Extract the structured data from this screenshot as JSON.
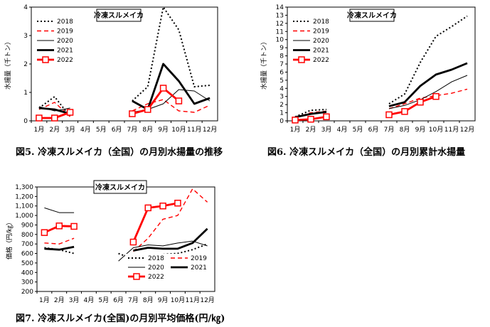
{
  "captions": {
    "fig5": "図5. 冷凍スルメイカ（全国）の月別水揚量の推移",
    "fig6": "図6. 冷凍スルメイカ（全国）の月別累計水揚量",
    "fig7": "図7. 冷凍スルメイカ(全国)の月別平均価格(円/㎏)"
  },
  "colors": {
    "y2018": "#000000",
    "y2019": "#ff0000",
    "y2020": "#000000",
    "y2021": "#000000",
    "y2022": "#ff0000"
  },
  "chart_data": [
    {
      "id": "fig5",
      "type": "line",
      "title": "冷凍スルメイカ",
      "ylabel": "水揚量（千トン）",
      "ylim": [
        0,
        4
      ],
      "yticks": [
        "0",
        "1",
        "2",
        "3",
        "4"
      ],
      "categories": [
        "1月",
        "2月",
        "3月",
        "4月",
        "5月",
        "6月",
        "7月",
        "8月",
        "9月",
        "10月",
        "11月",
        "12月"
      ],
      "legend_position": "top-left",
      "series": [
        {
          "name": "2018",
          "values": [
            0.45,
            0.85,
            0.15,
            null,
            null,
            null,
            0.7,
            1.2,
            4.0,
            3.2,
            1.2,
            1.25
          ]
        },
        {
          "name": "2019",
          "values": [
            0.4,
            0.65,
            0.15,
            null,
            null,
            null,
            0.35,
            0.6,
            0.75,
            0.35,
            0.3,
            0.55
          ]
        },
        {
          "name": "2020",
          "values": [
            0.5,
            0.35,
            0.45,
            null,
            null,
            null,
            0.3,
            0.4,
            0.6,
            1.1,
            1.05,
            0.7
          ]
        },
        {
          "name": "2021",
          "values": [
            0.45,
            0.4,
            0.25,
            null,
            null,
            null,
            0.7,
            0.4,
            2.0,
            1.4,
            0.6,
            0.8
          ]
        },
        {
          "name": "2022",
          "values": [
            0.1,
            0.1,
            0.3,
            null,
            null,
            null,
            0.25,
            0.4,
            1.15,
            0.7,
            null,
            null
          ]
        }
      ]
    },
    {
      "id": "fig6",
      "type": "line",
      "title": "冷凍スルメイカ",
      "ylabel": "水揚量（千トン）",
      "ylim": [
        0,
        14
      ],
      "yticks": [
        "0",
        "1",
        "2",
        "3",
        "4",
        "5",
        "6",
        "7",
        "8",
        "9",
        "10",
        "11",
        "12",
        "13",
        "14"
      ],
      "categories": [
        "1月",
        "2月",
        "3月",
        "4月",
        "5月",
        "6月",
        "7月",
        "8月",
        "9月",
        "10月",
        "11月",
        "12月"
      ],
      "legend_position": "top-left",
      "series": [
        {
          "name": "2018",
          "values": [
            0.5,
            1.3,
            1.4,
            null,
            null,
            null,
            2.1,
            3.3,
            7.2,
            10.4,
            11.6,
            12.9
          ]
        },
        {
          "name": "2019",
          "values": [
            0.4,
            1.0,
            1.2,
            null,
            null,
            null,
            1.5,
            2.1,
            2.8,
            3.1,
            3.4,
            3.9
          ]
        },
        {
          "name": "2020",
          "values": [
            0.5,
            0.8,
            1.2,
            null,
            null,
            null,
            1.5,
            1.9,
            2.6,
            3.6,
            4.8,
            5.6
          ]
        },
        {
          "name": "2021",
          "values": [
            0.45,
            0.85,
            1.1,
            null,
            null,
            null,
            1.8,
            2.3,
            4.3,
            5.7,
            6.3,
            7.1
          ]
        },
        {
          "name": "2022",
          "values": [
            0.1,
            0.2,
            0.5,
            null,
            null,
            null,
            0.75,
            1.15,
            2.3,
            3.0,
            null,
            null
          ]
        }
      ]
    },
    {
      "id": "fig7",
      "type": "line",
      "title": "冷凍スルメイカ",
      "ylabel": "価格（円/㎏）",
      "ylim": [
        200,
        1300
      ],
      "yticks": [
        "200",
        "300",
        "400",
        "500",
        "600",
        "700",
        "800",
        "900",
        "1,000",
        "1,100",
        "1,200",
        "1,300"
      ],
      "categories": [
        "1月",
        "2月",
        "3月",
        "4月",
        "5月",
        "6月",
        "7月",
        "8月",
        "9月",
        "10月",
        "11月",
        "12月"
      ],
      "legend_position": "bottom-right",
      "series": [
        {
          "name": "2018",
          "values": [
            660,
            640,
            600,
            null,
            null,
            600,
            540,
            570,
            590,
            600,
            640,
            700
          ]
        },
        {
          "name": "2019",
          "values": [
            710,
            700,
            760,
            null,
            null,
            null,
            620,
            760,
            960,
            1000,
            1280,
            1140
          ]
        },
        {
          "name": "2020",
          "values": [
            1080,
            1030,
            1030,
            null,
            null,
            520,
            660,
            690,
            680,
            710,
            730,
            680
          ]
        },
        {
          "name": "2021",
          "values": [
            650,
            640,
            670,
            null,
            null,
            null,
            630,
            660,
            650,
            650,
            710,
            860
          ]
        },
        {
          "name": "2022",
          "values": [
            820,
            890,
            885,
            null,
            null,
            null,
            720,
            1080,
            1100,
            1130,
            null,
            null
          ]
        }
      ]
    }
  ]
}
